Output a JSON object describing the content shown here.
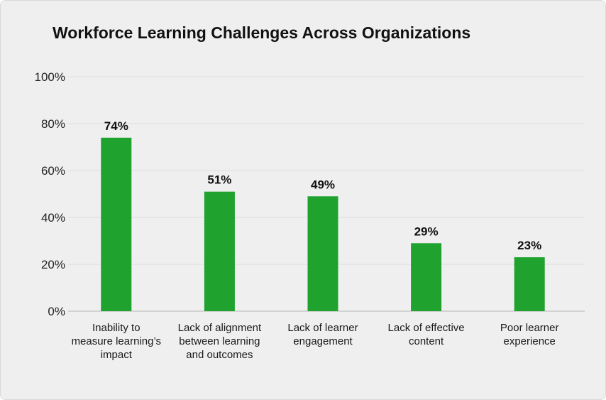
{
  "chart_data": {
    "type": "bar",
    "title": "Workforce Learning Challenges Across Organizations",
    "xlabel": "",
    "ylabel": "",
    "ylim": [
      0,
      100
    ],
    "yticks": [
      "0%",
      "20%",
      "40%",
      "60%",
      "80%",
      "100%"
    ],
    "grid": true,
    "categories": [
      [
        "Inability to",
        "measure learning’s",
        "impact"
      ],
      [
        "Lack of alignment",
        "between learning",
        "and outcomes"
      ],
      [
        "Lack of learner",
        "engagement"
      ],
      [
        "Lack of effective",
        "content"
      ],
      [
        "Poor learner",
        "experience"
      ]
    ],
    "values": [
      74,
      51,
      49,
      29,
      23
    ],
    "data_labels": [
      "74%",
      "51%",
      "49%",
      "29%",
      "23%"
    ],
    "colors": {
      "bar": "#1fa22e",
      "background": "#efefef"
    }
  }
}
